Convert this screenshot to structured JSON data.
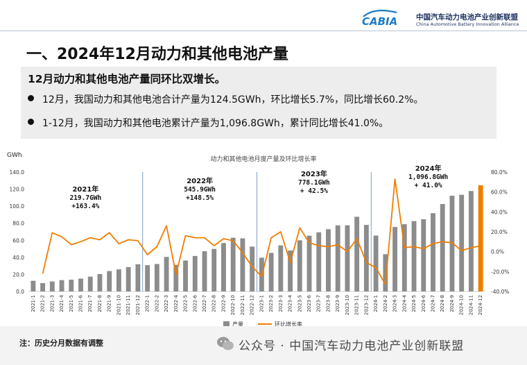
{
  "header": {
    "logo": {
      "mark": "CABIA",
      "name": "中国汽车动力电池产业创新联盟",
      "sub": "China Automotive Battery Innovation Alliance"
    }
  },
  "page": {
    "title": "一、2024年12月动力和其他电池产量"
  },
  "summary": {
    "headline": "12月动力和其他电池产量同环比双增长。",
    "bullets": [
      "12月，我国动力和其他电池合计产量为124.5GWh，环比增长5.7%，同比增长60.2%。",
      "1-12月，我国动力和其他电池累计产量为1,096.8GWh，累计同比增长41.0%。"
    ]
  },
  "chart_data": {
    "type": "bar",
    "title": "动力和其他电池月度产量及环比增长率",
    "y_unit": "GWh",
    "ylim": [
      0,
      140
    ],
    "y_ticks": [
      "0.0",
      "20.0",
      "40.0",
      "60.0",
      "80.0",
      "100.0",
      "120.0",
      "140.0"
    ],
    "y2lim": [
      -40,
      80
    ],
    "y2_ticks": [
      "-40.0%",
      "-20.0%",
      "0.0%",
      "20.0%",
      "40.0%",
      "60.0%",
      "80.0%"
    ],
    "categories": [
      "2021-1",
      "2021-2",
      "2021-3",
      "2021-4",
      "2021-5",
      "2021-6",
      "2021-7",
      "2021-8",
      "2021-9",
      "2021-10",
      "2021-11",
      "2021-12",
      "2022-1",
      "2022-2",
      "2022-3",
      "2022-4",
      "2022-5",
      "2022-6",
      "2022-7",
      "2022-8",
      "2022-9",
      "2022-10",
      "2022-11",
      "2022-12",
      "2023-1",
      "2023-2",
      "2023-3",
      "2023-4",
      "2023-5",
      "2023-6",
      "2023-7",
      "2023-8",
      "2023-9",
      "2023-10",
      "2023-11",
      "2023-12",
      "2024-1",
      "2024-2",
      "2024-3",
      "2024-4",
      "2024-5",
      "2024-6",
      "2024-7",
      "2024-8",
      "2024-9",
      "2024-10",
      "2024-11",
      "2024-12"
    ],
    "series": [
      {
        "name": "产量",
        "kind": "bar",
        "color": "#8c8c8c",
        "highlight_last": "#f07d00",
        "values": [
          12.5,
          9.8,
          11.7,
          13.3,
          13.8,
          15.1,
          17.4,
          20.4,
          23.9,
          25.9,
          28.6,
          31.9,
          30.8,
          32.2,
          40.5,
          31.2,
          36.3,
          41.6,
          47.2,
          49.9,
          56.8,
          63.0,
          62.2,
          52.6,
          39.6,
          45.2,
          54.0,
          48.1,
          60.0,
          65.4,
          69.4,
          73.0,
          77.5,
          77.6,
          87.6,
          78.0,
          65.5,
          43.7,
          75.6,
          78.9,
          82.5,
          84.7,
          91.8,
          102.6,
          112.3,
          113.4,
          117.8,
          124.5
        ]
      },
      {
        "name": "环比增长率",
        "kind": "line",
        "axis": "right",
        "color": "#f07d00",
        "values": [
          null,
          -22,
          19,
          15,
          7,
          10,
          14,
          12,
          19,
          8,
          12,
          11,
          -3,
          5,
          26,
          -23,
          16,
          14,
          14,
          6,
          13,
          11,
          -1,
          -15,
          -25,
          14,
          20,
          -11,
          24,
          9,
          6,
          5,
          7,
          0,
          13,
          -11,
          -16,
          -33,
          73,
          4,
          5,
          3,
          8,
          10,
          9,
          1,
          4,
          5.7
        ]
      }
    ],
    "period_labels": [
      {
        "year": "2021年",
        "total": "219.7GWh",
        "growth": "+163.4%"
      },
      {
        "year": "2022年",
        "total": "545.9GWh",
        "growth": "+148.5%"
      },
      {
        "year": "2023年",
        "total": "778.1GWh",
        "growth": "+ 42.5%"
      },
      {
        "year": "2024年",
        "total": "1,096.8GWh",
        "growth": "+ 41.0%"
      }
    ],
    "legend": {
      "position": "bottom",
      "items": [
        "产量",
        "环比增长率"
      ]
    },
    "grid": false
  },
  "footer": {
    "note": "注：历史分月数据有调整",
    "watermark": "公众号 · 中国汽车动力电池产业创新联盟"
  }
}
